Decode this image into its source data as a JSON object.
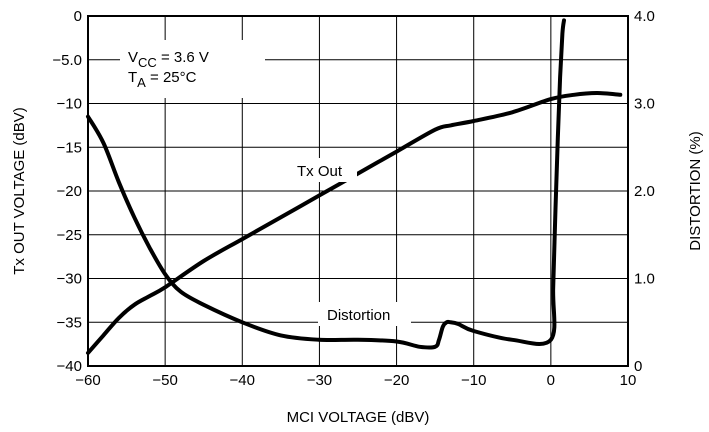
{
  "chart_data": {
    "type": "line",
    "title": "",
    "xlabel": "MCI VOLTAGE (dBV)",
    "ylabel_left": "Tx OUT VOLTAGE (dBV)",
    "ylabel_right": "DISTORTION (%)",
    "xlim": [
      -60,
      10
    ],
    "ylim_left": [
      -40,
      0
    ],
    "ylim_right": [
      0,
      4.0
    ],
    "x_ticks": [
      "−60",
      "−50",
      "−40",
      "−30",
      "−20",
      "−10",
      "0",
      "10"
    ],
    "y_left_ticks": [
      "0",
      "−5.0",
      "−10",
      "−15",
      "−20",
      "−25",
      "−30",
      "−35",
      "−40"
    ],
    "y_right_ticks": [
      "4.0",
      "3.0",
      "2.0",
      "1.0",
      "0"
    ],
    "grid": true,
    "conditions": {
      "vcc_prefix": "V",
      "vcc_sub": "CC",
      "vcc_value": " = 3.6 V",
      "ta_prefix": "T",
      "ta_sub": "A",
      "ta_value": " = 25°C"
    },
    "series": [
      {
        "name": "Tx Out",
        "axis": "left",
        "x": [
          -60,
          -58,
          -56,
          -54,
          -52,
          -50,
          -45,
          -40,
          -35,
          -30,
          -25,
          -20,
          -15,
          -13,
          -10,
          -5,
          0,
          3,
          6,
          9
        ],
        "y": [
          -38.5,
          -36.5,
          -34.5,
          -33,
          -32,
          -31,
          -28,
          -25.5,
          -23,
          -20.5,
          -18,
          -15.5,
          -13,
          -12.5,
          -12,
          -11,
          -9.5,
          -9,
          -8.8,
          -9
        ]
      },
      {
        "name": "Distortion",
        "axis": "right",
        "x": [
          -60,
          -58,
          -56,
          -54,
          -52,
          -50,
          -48,
          -45,
          -40,
          -35,
          -30,
          -25,
          -20,
          -17,
          -15,
          -14.5,
          -14,
          -13.5,
          -13,
          -12,
          -10,
          -5,
          0,
          0.3,
          0.6,
          0.9,
          1.2,
          1.5,
          1.7
        ],
        "y": [
          2.85,
          2.55,
          2.1,
          1.7,
          1.35,
          1.05,
          0.85,
          0.7,
          0.5,
          0.35,
          0.3,
          0.3,
          0.28,
          0.22,
          0.22,
          0.3,
          0.45,
          0.5,
          0.5,
          0.48,
          0.4,
          0.3,
          0.3,
          0.9,
          1.8,
          2.6,
          3.3,
          3.8,
          3.95
        ]
      }
    ]
  }
}
